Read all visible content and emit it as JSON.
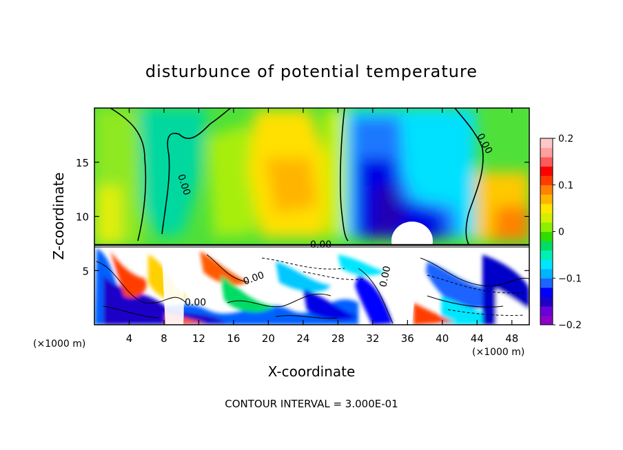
{
  "chart_data": {
    "type": "heatmap",
    "title": "disturbunce of potential temperature",
    "xlabel": "X-coordinate",
    "ylabel": "Z-coordinate",
    "x_unit": "(×1000 m)",
    "y_unit": "(×1000 m)",
    "xlim": [
      0,
      50
    ],
    "ylim": [
      0,
      20
    ],
    "x_ticks": [
      4,
      8,
      12,
      16,
      20,
      24,
      28,
      32,
      36,
      40,
      44,
      48
    ],
    "y_ticks": [
      5,
      10,
      15
    ],
    "colorbar": {
      "range": [
        -0.2,
        0.2
      ],
      "tick_values": [
        0.2,
        0.1,
        0,
        -0.1,
        -0.2
      ],
      "tick_labels": [
        "0.2",
        "0.1",
        "0",
        "−0.1",
        "−0.2"
      ],
      "colors": [
        "#8c00c8",
        "#6a00d8",
        "#1e00c8",
        "#0000ff",
        "#1e64ff",
        "#00b4ff",
        "#00e6ff",
        "#00f0b4",
        "#00dc64",
        "#32dc00",
        "#8cf000",
        "#d2f000",
        "#ffe600",
        "#ffb400",
        "#ff8200",
        "#ff3c00",
        "#ff0000",
        "#ff5a5a",
        "#ffa0a0",
        "#ffc8c8"
      ]
    },
    "contour_labels": [
      "0.00",
      "0.00",
      "0.00",
      "0.00",
      "0.00",
      "0.00"
    ],
    "note": "CONTOUR INTERVAL = 3.000E-01"
  }
}
